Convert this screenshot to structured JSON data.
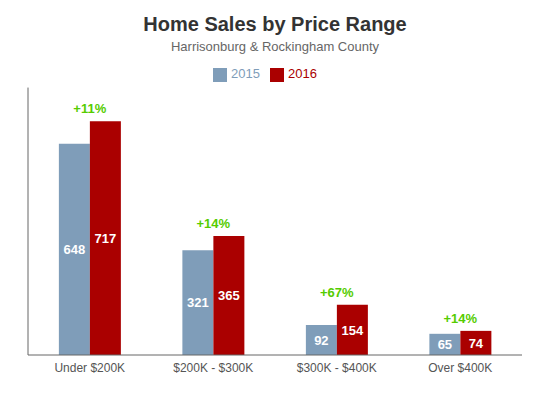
{
  "chart_data": {
    "type": "bar",
    "title": "Home Sales by Price Range",
    "subtitle": "Harrisonburg & Rockingham County",
    "categories": [
      "Under $200K",
      "$200K - $300K",
      "$300K - $400K",
      "Over $400K"
    ],
    "series": [
      {
        "name": "2015",
        "color": "#7f9db9",
        "values": [
          648,
          321,
          92,
          65
        ]
      },
      {
        "name": "2016",
        "color": "#aa0000",
        "values": [
          717,
          365,
          154,
          74
        ]
      }
    ],
    "annotations": [
      {
        "x": "Under $200K",
        "text": "+11%",
        "color": "#55cc00"
      },
      {
        "x": "$200K - $300K",
        "text": "+14%",
        "color": "#55cc00"
      },
      {
        "x": "$300K - $400K",
        "text": "+67%",
        "color": "#55cc00"
      },
      {
        "x": "Over $400K",
        "text": "+14%",
        "color": "#55cc00"
      }
    ],
    "ylim": [
      0,
      820
    ],
    "tick_labels": "x",
    "data_labels": true,
    "legend": "top",
    "grid": false
  }
}
